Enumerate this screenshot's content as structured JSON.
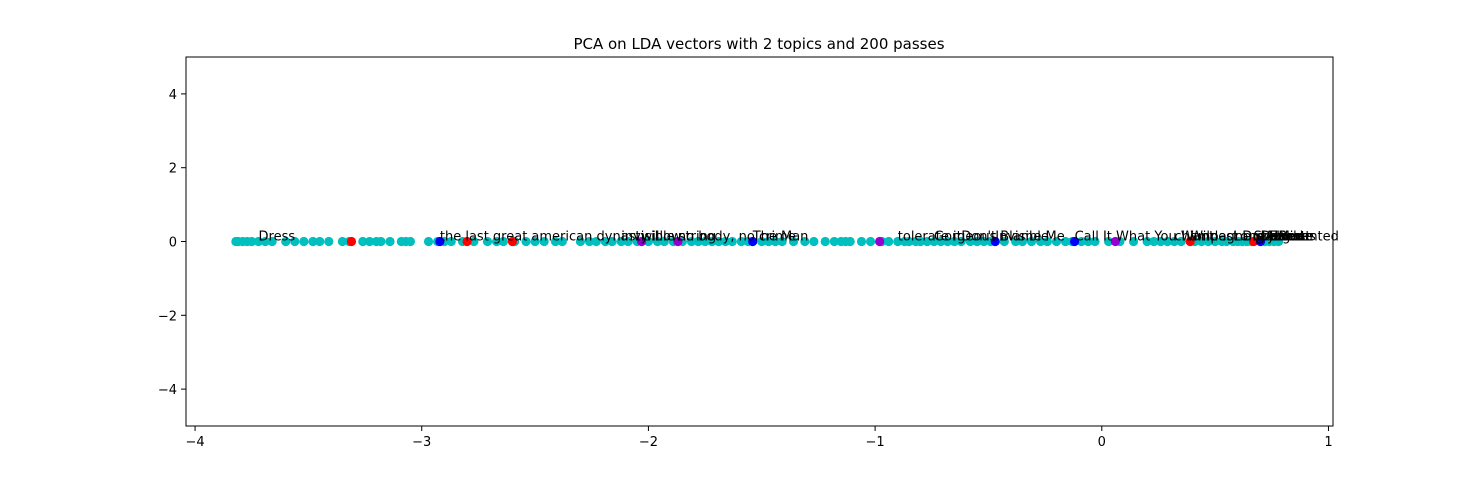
{
  "chart_data": {
    "type": "scatter",
    "title": "PCA on LDA vectors with 2 topics and 200 passes",
    "xlabel": "",
    "ylabel": "",
    "xlim": [
      -4.04,
      1.02
    ],
    "ylim": [
      -5,
      5
    ],
    "xticks": [
      -4,
      -3,
      -2,
      -1,
      0,
      1
    ],
    "xtick_labels": [
      "−4",
      "−3",
      "−2",
      "−1",
      "0",
      "1"
    ],
    "yticks": [
      -4,
      -2,
      0,
      2,
      4
    ],
    "ytick_labels": [
      "−4",
      "−2",
      "0",
      "2",
      "4"
    ],
    "grid": false,
    "legend": "none",
    "colors": {
      "cyan": "#00bfbf",
      "red": "#ff0000",
      "blue": "#0000ff",
      "purple": "#9400d3"
    },
    "series": [
      {
        "color": "cyan",
        "x": [
          -3.82,
          -3.81,
          -3.79,
          -3.77,
          -3.75,
          -3.72,
          -3.69,
          -3.66,
          -3.6,
          -3.56,
          -3.52,
          -3.48,
          -3.45,
          -3.41,
          -3.35,
          -3.32,
          -3.26,
          -3.23,
          -3.2,
          -3.18,
          -3.14,
          -3.09,
          -3.07,
          -3.05,
          -2.97,
          -2.93,
          -2.9,
          -2.87,
          -2.82,
          -2.77,
          -2.71,
          -2.67,
          -2.64,
          -2.59,
          -2.54,
          -2.5,
          -2.46,
          -2.41,
          -2.38,
          -2.3,
          -2.26,
          -2.23,
          -2.19,
          -2.16,
          -2.12,
          -2.09,
          -2.05,
          -2.0,
          -1.96,
          -1.93,
          -1.89,
          -1.85,
          -1.81,
          -1.78,
          -1.75,
          -1.72,
          -1.69,
          -1.66,
          -1.63,
          -1.59,
          -1.56,
          -1.5,
          -1.47,
          -1.44,
          -1.41,
          -1.36,
          -1.31,
          -1.27,
          -1.22,
          -1.18,
          -1.15,
          -1.13,
          -1.11,
          -1.06,
          -1.02,
          -0.97,
          -0.94,
          -0.9,
          -0.87,
          -0.85,
          -0.82,
          -0.8,
          -0.77,
          -0.74,
          -0.71,
          -0.68,
          -0.65,
          -0.62,
          -0.58,
          -0.55,
          -0.52,
          -0.49,
          -0.43,
          -0.38,
          -0.35,
          -0.31,
          -0.27,
          -0.24,
          -0.2,
          -0.16,
          -0.13,
          -0.09,
          -0.06,
          -0.03,
          0.03,
          0.08,
          0.14,
          0.2,
          0.23,
          0.26,
          0.29,
          0.32,
          0.35,
          0.41,
          0.44,
          0.47,
          0.5,
          0.53,
          0.55,
          0.58,
          0.6,
          0.62,
          0.64,
          0.66,
          0.7,
          0.72,
          0.74,
          0.76,
          0.78
        ],
        "y": [
          0,
          0,
          0,
          0,
          0,
          0,
          0,
          0,
          0,
          0,
          0,
          0,
          0,
          0,
          0,
          0,
          0,
          0,
          0,
          0,
          0,
          0,
          0,
          0,
          0,
          0,
          0,
          0,
          0,
          0,
          0,
          0,
          0,
          0,
          0,
          0,
          0,
          0,
          0,
          0,
          0,
          0,
          0,
          0,
          0,
          0,
          0,
          0,
          0,
          0,
          0,
          0,
          0,
          0,
          0,
          0,
          0,
          0,
          0,
          0,
          0,
          0,
          0,
          0,
          0,
          0,
          0,
          0,
          0,
          0,
          0,
          0,
          0,
          0,
          0,
          0,
          0,
          0,
          0,
          0,
          0,
          0,
          0,
          0,
          0,
          0,
          0,
          0,
          0,
          0,
          0,
          0,
          0,
          0,
          0,
          0,
          0,
          0,
          0,
          0,
          0,
          0,
          0,
          0,
          0,
          0,
          0,
          0,
          0,
          0,
          0,
          0,
          0,
          0,
          0,
          0,
          0,
          0,
          0,
          0,
          0,
          0,
          0,
          0,
          0,
          0,
          0,
          0,
          0
        ]
      },
      {
        "color": "red",
        "x": [
          -3.31,
          -2.8,
          -2.6,
          0.39,
          0.67
        ],
        "y": [
          0,
          0,
          0,
          0,
          0
        ]
      },
      {
        "color": "blue",
        "x": [
          -2.92,
          -1.54,
          -0.47,
          -0.12,
          0.7
        ],
        "y": [
          0,
          0,
          0,
          0,
          0
        ]
      },
      {
        "color": "purple",
        "x": [
          -2.03,
          -1.87,
          -0.98,
          0.06
        ],
        "y": [
          0,
          0,
          0,
          0
        ]
      }
    ],
    "annotations": [
      {
        "text": "Dress",
        "x": -3.72,
        "y": 0
      },
      {
        "text": "the last great american dynasty",
        "x": -2.92,
        "y": 0
      },
      {
        "text": "willow",
        "x": -2.03,
        "y": 0
      },
      {
        "text": "invisible string",
        "x": -2.12,
        "y": 0
      },
      {
        "text": "no body, no crime",
        "x": -1.87,
        "y": 0
      },
      {
        "text": "The Man",
        "x": -1.54,
        "y": 0
      },
      {
        "text": "tolerate it",
        "x": -0.9,
        "y": 0
      },
      {
        "text": "Gorgeous",
        "x": -0.74,
        "y": 0
      },
      {
        "text": "Don't Blame Me",
        "x": -0.62,
        "y": 0
      },
      {
        "text": "Invisible",
        "x": -0.47,
        "y": 0
      },
      {
        "text": "Call It What You Want",
        "x": -0.12,
        "y": 0
      },
      {
        "text": "champagne problems",
        "x": 0.32,
        "y": 0
      },
      {
        "text": "Wildest Dreams",
        "x": 0.39,
        "y": 0
      },
      {
        "text": "Long Live",
        "x": 0.58,
        "y": 0
      },
      {
        "text": "Style",
        "x": 0.67,
        "y": 0
      },
      {
        "text": "Delicate",
        "x": 0.7,
        "y": 0
      },
      {
        "text": "August",
        "x": 0.72,
        "y": 0
      },
      {
        "text": "Enchanted",
        "x": 0.74,
        "y": 0
      },
      {
        "text": "Lover",
        "x": 0.76,
        "y": 0
      },
      {
        "text": "Mine",
        "x": 0.78,
        "y": 0
      },
      {
        "text": "Red",
        "x": 0.78,
        "y": 0
      }
    ]
  }
}
